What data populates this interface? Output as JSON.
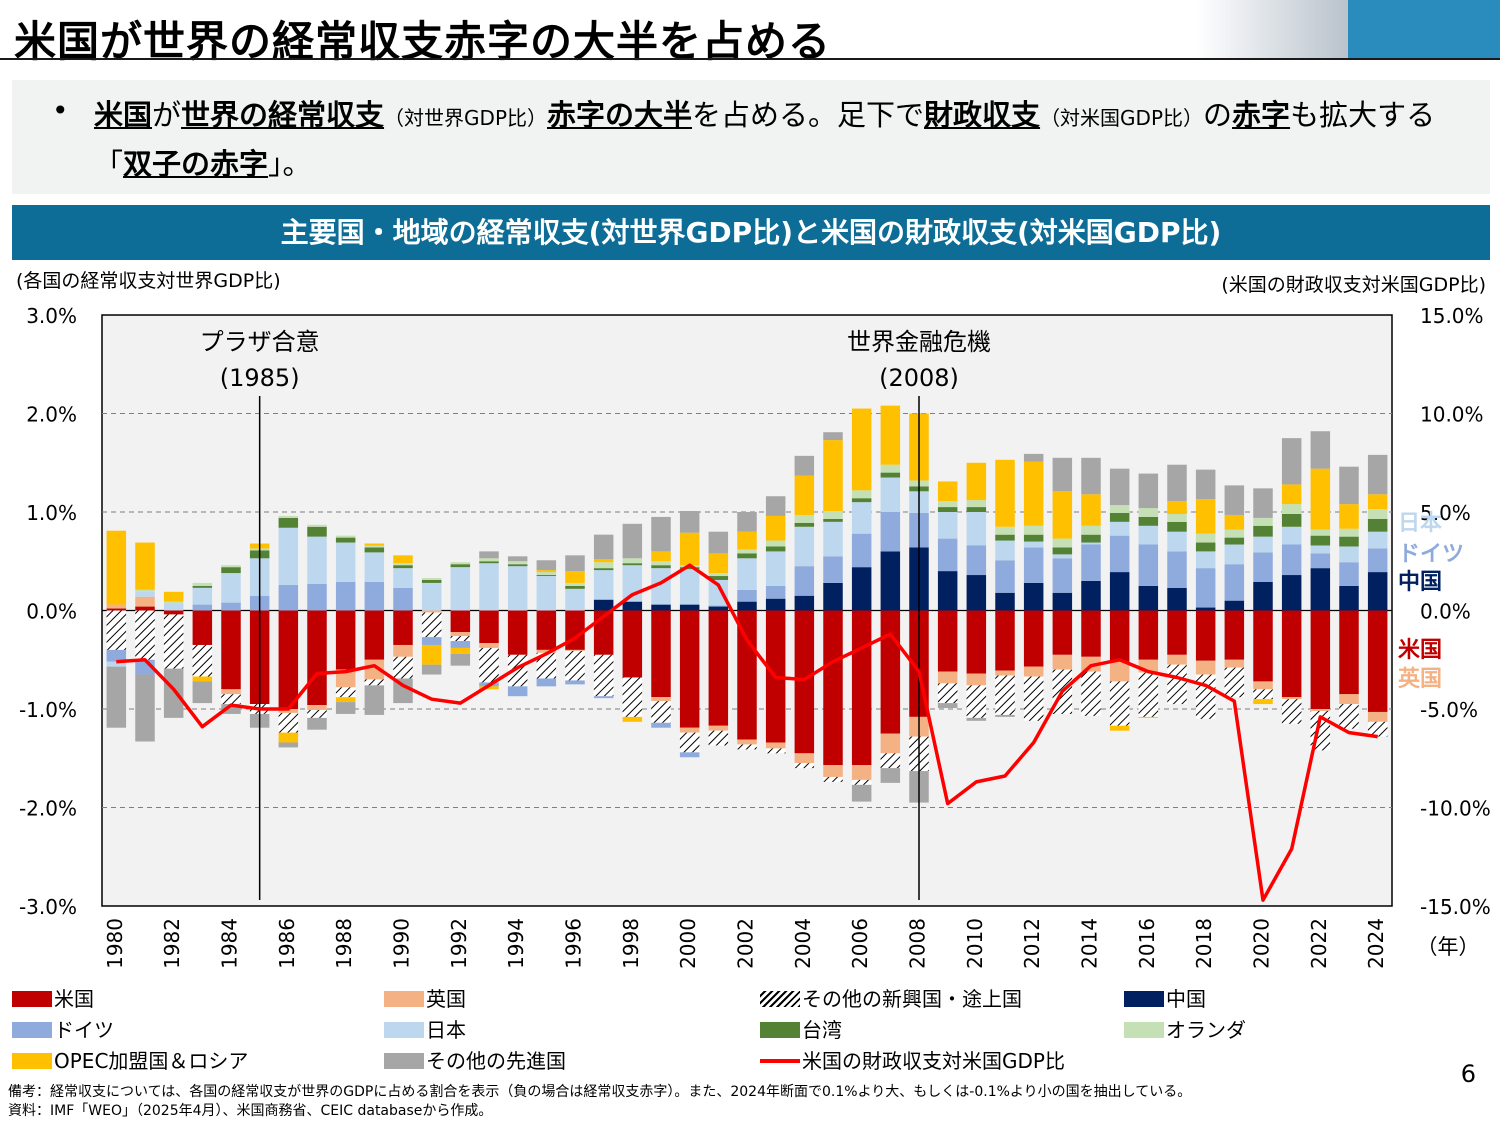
{
  "header": {
    "title": "米国が世界の経常収支赤字の大半を占める"
  },
  "summary": {
    "bullet": "•",
    "s1": "米国",
    "s2": "が",
    "s3": "世界の経常収支",
    "s4": "（対世界GDP比）",
    "s5": "赤字の大半",
    "s6": "を占める。足下で",
    "s7": "財政収支",
    "s8": "（対米国GDP比）",
    "s9": "の",
    "s10": "赤字",
    "s11": "も拡大する「",
    "s12": "双子の赤字",
    "s13": "」。"
  },
  "banner": {
    "title": "主要国・地域の経常収支(対世界GDP比)と米国の財政収支(対米国GDP比)"
  },
  "axis_notes": {
    "left": "(各国の経常収支対世界GDP比)",
    "right": "(米国の財政収支対米国GDP比)"
  },
  "chart_data": {
    "type": "bar",
    "stacked": true,
    "years": [
      1980,
      1981,
      1982,
      1983,
      1984,
      1985,
      1986,
      1987,
      1988,
      1989,
      1990,
      1991,
      1992,
      1993,
      1994,
      1995,
      1996,
      1997,
      1998,
      1999,
      2000,
      2001,
      2002,
      2003,
      2004,
      2005,
      2006,
      2007,
      2008,
      2009,
      2010,
      2011,
      2012,
      2013,
      2014,
      2015,
      2016,
      2017,
      2018,
      2019,
      2020,
      2021,
      2022,
      2023,
      2024
    ],
    "x_tick_labels": [
      "1980",
      "1982",
      "1984",
      "1986",
      "1988",
      "1990",
      "1992",
      "1994",
      "1996",
      "1998",
      "2000",
      "2002",
      "2004",
      "2006",
      "2008",
      "2010",
      "2012",
      "2014",
      "2016",
      "2018",
      "2020",
      "2022",
      "2024"
    ],
    "x_unit": "（年）",
    "y_left": {
      "min": -3.0,
      "max": 3.0,
      "ticks": [
        "3.0%",
        "2.0%",
        "1.0%",
        "0.0%",
        "-1.0%",
        "-2.0%",
        "-3.0%"
      ]
    },
    "y_right": {
      "min": -15.0,
      "max": 15.0,
      "ticks": [
        "15.0%",
        "10.0%",
        "5.0%",
        "0.0%",
        "-5.0%",
        "-10.0%",
        "-15.0%"
      ]
    },
    "series": [
      {
        "name": "米国",
        "color": "#c00000",
        "values": [
          0.02,
          0.04,
          -0.04,
          -0.35,
          -0.8,
          -0.95,
          -1.0,
          -0.96,
          -0.6,
          -0.5,
          -0.35,
          0.0,
          -0.22,
          -0.33,
          -0.45,
          -0.4,
          -0.4,
          -0.45,
          -0.68,
          -0.88,
          -1.19,
          -1.17,
          -1.31,
          -1.34,
          -1.45,
          -1.57,
          -1.57,
          -1.25,
          -1.08,
          -0.62,
          -0.64,
          -0.61,
          -0.57,
          -0.45,
          -0.47,
          -0.52,
          -0.5,
          -0.45,
          -0.51,
          -0.5,
          -0.72,
          -0.88,
          -1.0,
          -0.85,
          -1.03
        ]
      },
      {
        "name": "英国",
        "color": "#f4b183",
        "values": [
          0.04,
          0.1,
          0.0,
          0.0,
          -0.05,
          0.0,
          -0.04,
          -0.05,
          -0.18,
          -0.2,
          -0.12,
          -0.02,
          -0.04,
          -0.05,
          0.0,
          -0.03,
          -0.01,
          0.0,
          0.0,
          -0.04,
          -0.05,
          -0.05,
          -0.05,
          -0.06,
          -0.1,
          -0.12,
          -0.15,
          -0.2,
          -0.2,
          -0.12,
          -0.12,
          -0.05,
          -0.1,
          -0.15,
          -0.15,
          -0.2,
          -0.13,
          -0.1,
          -0.14,
          -0.08,
          -0.08,
          -0.02,
          -0.02,
          -0.1,
          -0.1
        ]
      },
      {
        "name": "その他の新興国・途上国",
        "color": "hatch",
        "values": [
          -0.4,
          -0.5,
          -0.55,
          -0.32,
          -0.1,
          -0.1,
          -0.2,
          -0.08,
          -0.1,
          -0.06,
          -0.22,
          -0.25,
          -0.05,
          -0.35,
          -0.32,
          -0.26,
          -0.3,
          -0.42,
          -0.4,
          -0.22,
          -0.2,
          -0.15,
          -0.05,
          -0.05,
          -0.05,
          -0.05,
          -0.05,
          -0.15,
          -0.35,
          -0.2,
          -0.33,
          -0.4,
          -0.45,
          -0.45,
          -0.45,
          -0.45,
          -0.45,
          -0.4,
          -0.45,
          -0.3,
          -0.1,
          -0.25,
          -0.4,
          -0.25,
          -0.15
        ]
      },
      {
        "name": "中国",
        "color": "#002060",
        "values": [
          0,
          0,
          0,
          0,
          0,
          0,
          0,
          0,
          0,
          0,
          0,
          0,
          0,
          0,
          0,
          0,
          0,
          0.11,
          0.09,
          0.06,
          0.06,
          0.04,
          0.09,
          0.12,
          0.15,
          0.28,
          0.44,
          0.6,
          0.64,
          0.4,
          0.36,
          0.18,
          0.28,
          0.18,
          0.3,
          0.39,
          0.25,
          0.23,
          0.03,
          0.1,
          0.29,
          0.36,
          0.43,
          0.25,
          0.39
        ]
      },
      {
        "name": "ドイツ",
        "color": "#8faadc",
        "values": [
          -0.12,
          -0.15,
          0.0,
          0.06,
          0.08,
          0.15,
          0.26,
          0.27,
          0.29,
          0.29,
          0.23,
          -0.08,
          -0.07,
          -0.04,
          -0.1,
          -0.08,
          -0.04,
          -0.02,
          0.0,
          -0.05,
          -0.05,
          0.01,
          0.12,
          0.13,
          0.3,
          0.27,
          0.34,
          0.4,
          0.35,
          0.33,
          0.3,
          0.33,
          0.36,
          0.35,
          0.37,
          0.37,
          0.42,
          0.37,
          0.4,
          0.37,
          0.3,
          0.31,
          0.15,
          0.24,
          0.24
        ]
      },
      {
        "name": "日本",
        "color": "#bdd7ee",
        "values": [
          -0.05,
          0.05,
          0.07,
          0.17,
          0.3,
          0.38,
          0.58,
          0.48,
          0.4,
          0.3,
          0.2,
          0.28,
          0.44,
          0.48,
          0.45,
          0.35,
          0.22,
          0.3,
          0.37,
          0.37,
          0.36,
          0.26,
          0.32,
          0.35,
          0.4,
          0.35,
          0.32,
          0.35,
          0.22,
          0.27,
          0.34,
          0.2,
          0.06,
          0.04,
          0.02,
          0.14,
          0.19,
          0.2,
          0.17,
          0.2,
          0.16,
          0.18,
          0.08,
          0.16,
          0.17
        ]
      },
      {
        "name": "台湾",
        "color": "#548235",
        "values": [
          0,
          0,
          0,
          0.02,
          0.06,
          0.08,
          0.1,
          0.1,
          0.05,
          0.05,
          0.03,
          0.03,
          0.03,
          0.02,
          0.02,
          0.01,
          0.03,
          0.02,
          0.02,
          0.03,
          0.02,
          0.04,
          0.05,
          0.05,
          0.04,
          0.03,
          0.04,
          0.05,
          0.05,
          0.05,
          0.05,
          0.06,
          0.07,
          0.07,
          0.08,
          0.09,
          0.09,
          0.1,
          0.09,
          0.07,
          0.11,
          0.13,
          0.1,
          0.1,
          0.13
        ]
      },
      {
        "name": "オランダ",
        "color": "#c5e0b4",
        "values": [
          0.0,
          0.02,
          0.02,
          0.03,
          0.02,
          0.02,
          0.02,
          0.02,
          0.02,
          0.02,
          0.02,
          0.02,
          0.02,
          0.03,
          0.03,
          0.03,
          0.03,
          0.06,
          0.05,
          0.04,
          0.02,
          0.03,
          0.04,
          0.06,
          0.08,
          0.08,
          0.08,
          0.08,
          0.06,
          0.06,
          0.07,
          0.08,
          0.09,
          0.09,
          0.09,
          0.08,
          0.09,
          0.08,
          0.09,
          0.08,
          0.08,
          0.1,
          0.06,
          0.08,
          0.1
        ]
      },
      {
        "name": "OPEC加盟国＆ロシア",
        "color": "#ffc000",
        "values": [
          0.75,
          0.48,
          0.1,
          -0.05,
          0.0,
          0.05,
          -0.1,
          0.0,
          -0.05,
          0.02,
          0.08,
          -0.2,
          -0.06,
          -0.03,
          0.0,
          0.02,
          0.12,
          0.03,
          -0.05,
          0.1,
          0.33,
          0.2,
          0.18,
          0.25,
          0.4,
          0.72,
          0.83,
          0.6,
          0.68,
          0.2,
          0.38,
          0.68,
          0.65,
          0.48,
          0.32,
          -0.05,
          -0.01,
          0.13,
          0.35,
          0.15,
          -0.05,
          0.2,
          0.62,
          0.25,
          0.15
        ]
      },
      {
        "name": "その他の先進国",
        "color": "#a6a6a6",
        "values": [
          -0.62,
          -0.68,
          -0.5,
          -0.22,
          -0.1,
          -0.14,
          -0.05,
          -0.12,
          -0.12,
          -0.3,
          -0.25,
          -0.1,
          -0.12,
          0.07,
          0.05,
          0.1,
          0.16,
          0.25,
          0.35,
          0.35,
          0.22,
          0.22,
          0.2,
          0.2,
          0.2,
          0.08,
          -0.17,
          -0.15,
          -0.32,
          -0.05,
          -0.03,
          -0.02,
          0.08,
          0.34,
          0.37,
          0.37,
          0.35,
          0.37,
          0.3,
          0.3,
          0.3,
          0.47,
          0.38,
          0.38,
          0.4
        ]
      }
    ],
    "line": {
      "name": "米国の財政収支対米国GDP比",
      "color": "#ff0000",
      "axis": "right",
      "values": [
        -2.6,
        -2.5,
        -4.0,
        -5.9,
        -4.8,
        -5.0,
        -5.0,
        -3.2,
        -3.1,
        -2.8,
        -3.8,
        -4.5,
        -4.7,
        -3.8,
        -2.9,
        -2.2,
        -1.4,
        -0.3,
        0.8,
        1.4,
        2.3,
        1.3,
        -1.5,
        -3.4,
        -3.5,
        -2.6,
        -1.9,
        -1.2,
        -3.1,
        -9.8,
        -8.7,
        -8.4,
        -6.7,
        -4.1,
        -2.8,
        -2.5,
        -3.1,
        -3.4,
        -3.8,
        -4.6,
        -14.7,
        -12.1,
        -5.4,
        -6.2,
        -6.4
      ]
    },
    "annotations": [
      {
        "year": 1985,
        "label_1": "プラザ合意",
        "label_2": "(1985)"
      },
      {
        "year": 2008,
        "label_1": "世界金融危機",
        "label_2": "(2008)"
      }
    ],
    "side_labels": [
      {
        "text": "日本",
        "color": "#bdd7ee"
      },
      {
        "text": "ドイツ",
        "color": "#8faadc"
      },
      {
        "text": "中国",
        "color": "#002060"
      },
      {
        "text": "米国",
        "color": "#c00000"
      },
      {
        "text": "英国",
        "color": "#f4b183"
      }
    ]
  },
  "legend": [
    {
      "label": "米国",
      "color": "#c00000",
      "kind": "box"
    },
    {
      "label": "英国",
      "color": "#f4b183",
      "kind": "box"
    },
    {
      "label": "その他の新興国・途上国",
      "color": "hatch",
      "kind": "box"
    },
    {
      "label": "中国",
      "color": "#002060",
      "kind": "box"
    },
    {
      "label": "ドイツ",
      "color": "#8faadc",
      "kind": "box"
    },
    {
      "label": "日本",
      "color": "#bdd7ee",
      "kind": "box"
    },
    {
      "label": "台湾",
      "color": "#548235",
      "kind": "box"
    },
    {
      "label": "オランダ",
      "color": "#c5e0b4",
      "kind": "box"
    },
    {
      "label": "OPEC加盟国＆ロシア",
      "color": "#ffc000",
      "kind": "box"
    },
    {
      "label": "その他の先進国",
      "color": "#a6a6a6",
      "kind": "box"
    },
    {
      "label": "米国の財政収支対米国GDP比",
      "color": "#ff0000",
      "kind": "line"
    }
  ],
  "page_number": "6",
  "footnotes": {
    "note": "備考：経常収支については、各国の経常収支が世界のGDPに占める割合を表示（負の場合は経常収支赤字）。また、2024年断面で0.1%より大、もしくは-0.1%より小の国を抽出している。",
    "source": "資料：IMF「WEO」（2025年4月）、米国商務省、CEIC databaseから作成。"
  }
}
